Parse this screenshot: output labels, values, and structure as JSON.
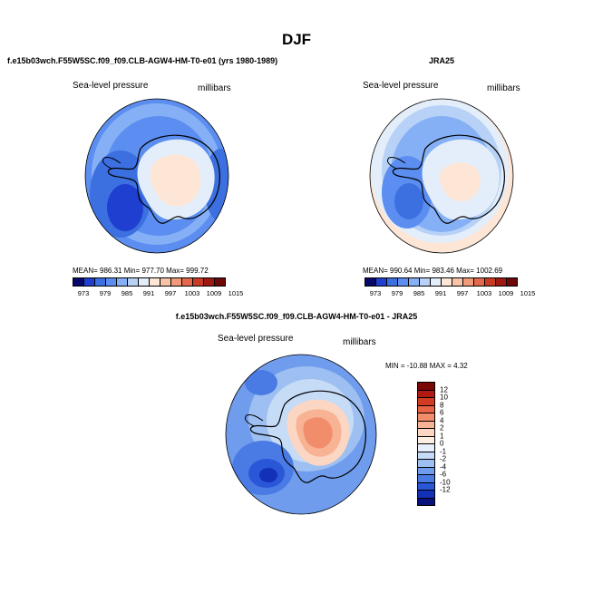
{
  "figure": {
    "title": "DJF"
  },
  "panels": {
    "model": {
      "title": "f.e15b03wch.F55W5SC.f09_f09.CLB-AGW4-HM-T0-e01 (yrs 1980-1989)",
      "variable": "Sea-level pressure",
      "units": "millibars",
      "stats": "MEAN= 986.31   Min= 977.70   Max= 999.72"
    },
    "obs": {
      "title": "JRA25",
      "variable": "Sea-level pressure",
      "units": "millibars",
      "stats": "MEAN= 990.64   Min= 983.46   Max= 1002.69"
    },
    "diff": {
      "title": "f.e15b03wch.F55W5SC.f09_f09.CLB-AGW4-HM-T0-e01 - JRA25",
      "variable": "Sea-level pressure",
      "units": "millibars",
      "stats": "MIN = -10.88  MAX =   4.32"
    }
  },
  "colorbars": {
    "absolute": {
      "colors": [
        "#08086b",
        "#1f3fd0",
        "#3c6fe0",
        "#5b8ef0",
        "#86b0f5",
        "#b8d2f7",
        "#e4eefb",
        "#fde6d6",
        "#f8c3a6",
        "#f09a79",
        "#e4694c",
        "#c83a24",
        "#a01812",
        "#6e0707"
      ],
      "ticks": [
        "973",
        "979",
        "985",
        "991",
        "997",
        "1003",
        "1009",
        "1015"
      ]
    },
    "difference": {
      "colors_top_to_bottom": [
        "#7a0606",
        "#b01a13",
        "#d23a22",
        "#e86444",
        "#f28d6c",
        "#f7b394",
        "#fbd7c3",
        "#fdeee4",
        "#e6effb",
        "#c6dbf6",
        "#9dbff2",
        "#6f9cec",
        "#4a7be4",
        "#2a56d8",
        "#1230b8",
        "#08107c"
      ],
      "ticks": [
        "12",
        "10",
        "8",
        "6",
        "4",
        "2",
        "1",
        "0",
        "-1",
        "-2",
        "-4",
        "-6",
        "-10",
        "-12"
      ]
    }
  },
  "chart_data": [
    {
      "type": "heatmap",
      "title": "f.e15b03wch.F55W5SC.f09_f09.CLB-AGW4-HM-T0-e01 (yrs 1980-1989)",
      "projection": "south-polar stereographic",
      "variable": "Sea-level pressure",
      "units": "millibars",
      "mean": 986.31,
      "min": 977.7,
      "max": 999.72,
      "contour_levels": [
        973,
        979,
        985,
        991,
        997,
        1003,
        1009,
        1015
      ]
    },
    {
      "type": "heatmap",
      "title": "JRA25",
      "projection": "south-polar stereographic",
      "variable": "Sea-level pressure",
      "units": "millibars",
      "mean": 990.64,
      "min": 983.46,
      "max": 1002.69,
      "contour_levels": [
        973,
        979,
        985,
        991,
        997,
        1003,
        1009,
        1015
      ]
    },
    {
      "type": "heatmap",
      "title": "f.e15b03wch.F55W5SC.f09_f09.CLB-AGW4-HM-T0-e01 - JRA25",
      "projection": "south-polar stereographic",
      "variable": "Sea-level pressure",
      "units": "millibars",
      "min": -10.88,
      "max": 4.32,
      "contour_levels": [
        -12,
        -10,
        -6,
        -4,
        -2,
        -1,
        0,
        1,
        2,
        4,
        6,
        8,
        10,
        12
      ]
    }
  ]
}
